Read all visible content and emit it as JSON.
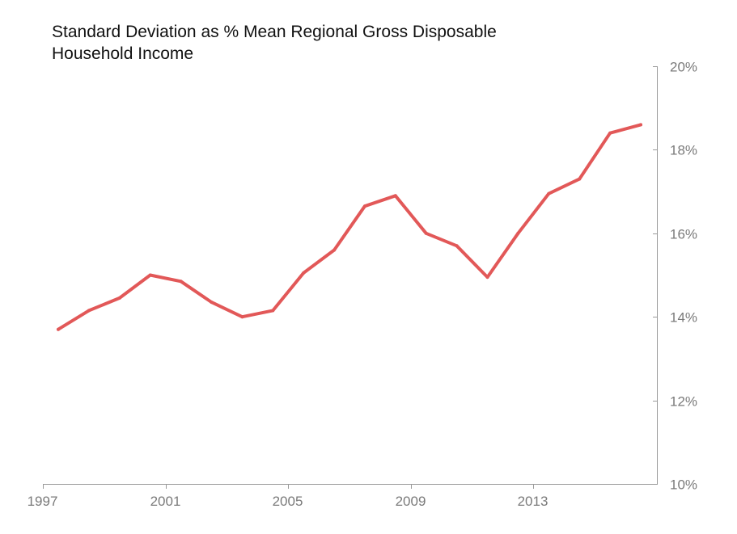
{
  "title_lines": [
    "Standard Deviation as % Mean Regional Gross Disposable",
    "Household Income"
  ],
  "chart_data": {
    "type": "line",
    "title": "Standard Deviation as % Mean Regional Gross Disposable Household Income",
    "xlabel": "",
    "ylabel": "",
    "x": [
      1997,
      1998,
      1999,
      2000,
      2001,
      2002,
      2003,
      2004,
      2005,
      2006,
      2007,
      2008,
      2009,
      2010,
      2011,
      2012,
      2013,
      2014,
      2015,
      2016
    ],
    "series": [
      {
        "values": [
          13.7,
          14.15,
          14.45,
          15.0,
          14.85,
          14.35,
          14.0,
          14.15,
          15.05,
          15.6,
          16.65,
          16.9,
          16.0,
          15.7,
          14.95,
          16.0,
          16.95,
          17.3,
          18.4,
          18.6
        ],
        "color": "#e25858"
      }
    ],
    "ylim": [
      10,
      20
    ],
    "y_ticks": [
      {
        "value": 10,
        "label": "10%"
      },
      {
        "value": 12,
        "label": "12%"
      },
      {
        "value": 14,
        "label": "14%"
      },
      {
        "value": 16,
        "label": "16%"
      },
      {
        "value": 18,
        "label": "18%"
      },
      {
        "value": 20,
        "label": "20%"
      }
    ],
    "x_ticks": [
      {
        "value": 1997,
        "label": "1997"
      },
      {
        "value": 2001,
        "label": "2001"
      },
      {
        "value": 2005,
        "label": "2005"
      },
      {
        "value": 2009,
        "label": "2009"
      },
      {
        "value": 2013,
        "label": "2013"
      }
    ],
    "y_axis_position": "right",
    "grid": false,
    "legend": "none"
  }
}
